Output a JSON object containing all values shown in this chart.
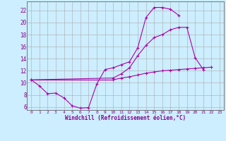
{
  "xlabel": "Windchill (Refroidissement éolien,°C)",
  "bg_color": "#cceeff",
  "line_color": "#aa00aa",
  "xlim": [
    -0.5,
    23.5
  ],
  "ylim": [
    5.5,
    23.5
  ],
  "xticks": [
    0,
    1,
    2,
    3,
    4,
    5,
    6,
    7,
    8,
    9,
    10,
    11,
    12,
    13,
    14,
    15,
    16,
    17,
    18,
    19,
    20,
    21,
    22,
    23
  ],
  "yticks": [
    6,
    8,
    10,
    12,
    14,
    16,
    18,
    20,
    22
  ],
  "line1_y": [
    10.5,
    9.5,
    8.2,
    8.3,
    7.5,
    6.2,
    5.8,
    5.9,
    9.8,
    12.2,
    12.5,
    13.0,
    13.5,
    15.8,
    20.8,
    22.5,
    22.5,
    22.2,
    21.2,
    null,
    null,
    null,
    null,
    null
  ],
  "line2_y": [
    10.5,
    null,
    null,
    null,
    null,
    null,
    null,
    null,
    null,
    null,
    10.8,
    11.5,
    12.5,
    14.5,
    16.2,
    17.5,
    18.0,
    18.8,
    19.2,
    19.2,
    14.2,
    12.2,
    null,
    null
  ],
  "line3_y": [
    10.5,
    null,
    null,
    null,
    null,
    null,
    null,
    null,
    null,
    null,
    10.5,
    10.8,
    11.0,
    11.3,
    11.6,
    11.8,
    12.0,
    12.1,
    12.2,
    12.3,
    12.4,
    12.5,
    12.6,
    null
  ]
}
